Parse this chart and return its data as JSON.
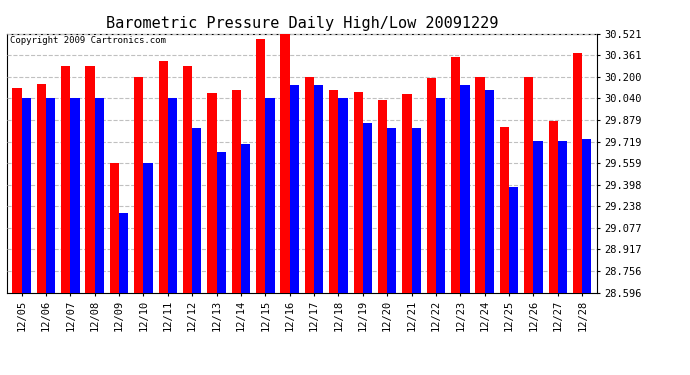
{
  "title": "Barometric Pressure Daily High/Low 20091229",
  "copyright": "Copyright 2009 Cartronics.com",
  "dates": [
    "12/05",
    "12/06",
    "12/07",
    "12/08",
    "12/09",
    "12/10",
    "12/11",
    "12/12",
    "12/13",
    "12/14",
    "12/15",
    "12/16",
    "12/17",
    "12/18",
    "12/19",
    "12/20",
    "12/21",
    "12/22",
    "12/23",
    "12/24",
    "12/25",
    "12/26",
    "12/27",
    "12/28"
  ],
  "highs": [
    30.12,
    30.15,
    30.28,
    30.28,
    29.56,
    30.2,
    30.32,
    30.28,
    30.08,
    30.1,
    30.48,
    30.52,
    30.2,
    30.1,
    30.09,
    30.03,
    30.07,
    30.19,
    30.35,
    30.2,
    29.83,
    30.2,
    29.87,
    30.38
  ],
  "lows": [
    30.04,
    30.04,
    30.04,
    30.04,
    29.19,
    29.56,
    30.04,
    29.82,
    29.64,
    29.7,
    30.04,
    30.14,
    30.14,
    30.04,
    29.86,
    29.82,
    29.82,
    30.04,
    30.14,
    30.1,
    29.38,
    29.72,
    29.72,
    29.74
  ],
  "yticks": [
    28.596,
    28.756,
    28.917,
    29.077,
    29.238,
    29.398,
    29.559,
    29.719,
    29.879,
    30.04,
    30.2,
    30.361,
    30.521
  ],
  "ymin": 28.596,
  "ymax": 30.521,
  "bar_width": 0.38,
  "high_color": "#ff0000",
  "low_color": "#0000ff",
  "bg_color": "#ffffff",
  "plot_bg_color": "#ffffff",
  "grid_color": "#c0c0c0",
  "title_fontsize": 11,
  "tick_fontsize": 7.5,
  "copyright_fontsize": 6.5
}
